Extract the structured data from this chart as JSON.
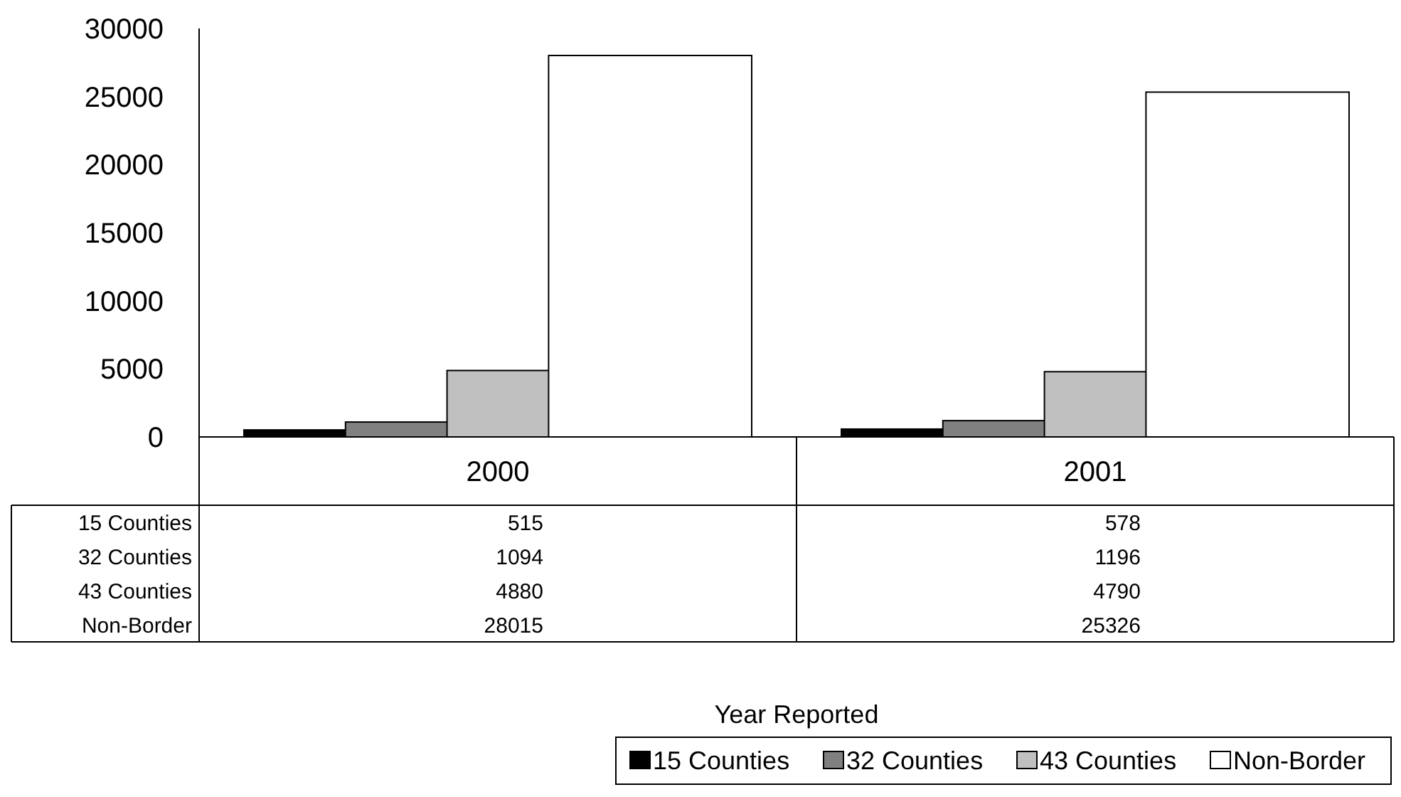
{
  "chart_data": {
    "type": "bar",
    "annotations": [
      "Year Reported"
    ],
    "categories": [
      "2000",
      "2001"
    ],
    "series": [
      {
        "name": "15 Counties",
        "color": "#000000",
        "values": [
          515,
          578
        ]
      },
      {
        "name": "32 Counties",
        "color": "#808080",
        "values": [
          1094,
          1196
        ]
      },
      {
        "name": "43 Counties",
        "color": "#c0c0c0",
        "values": [
          4880,
          4790
        ]
      },
      {
        "name": "Non-Border",
        "color": "#ffffff",
        "values": [
          28015,
          25326
        ]
      }
    ],
    "ylim": [
      0,
      30000
    ],
    "yticks": [
      0,
      5000,
      10000,
      15000,
      20000,
      25000,
      30000
    ],
    "grid": false,
    "legend": "bottom",
    "data_labels": true
  }
}
